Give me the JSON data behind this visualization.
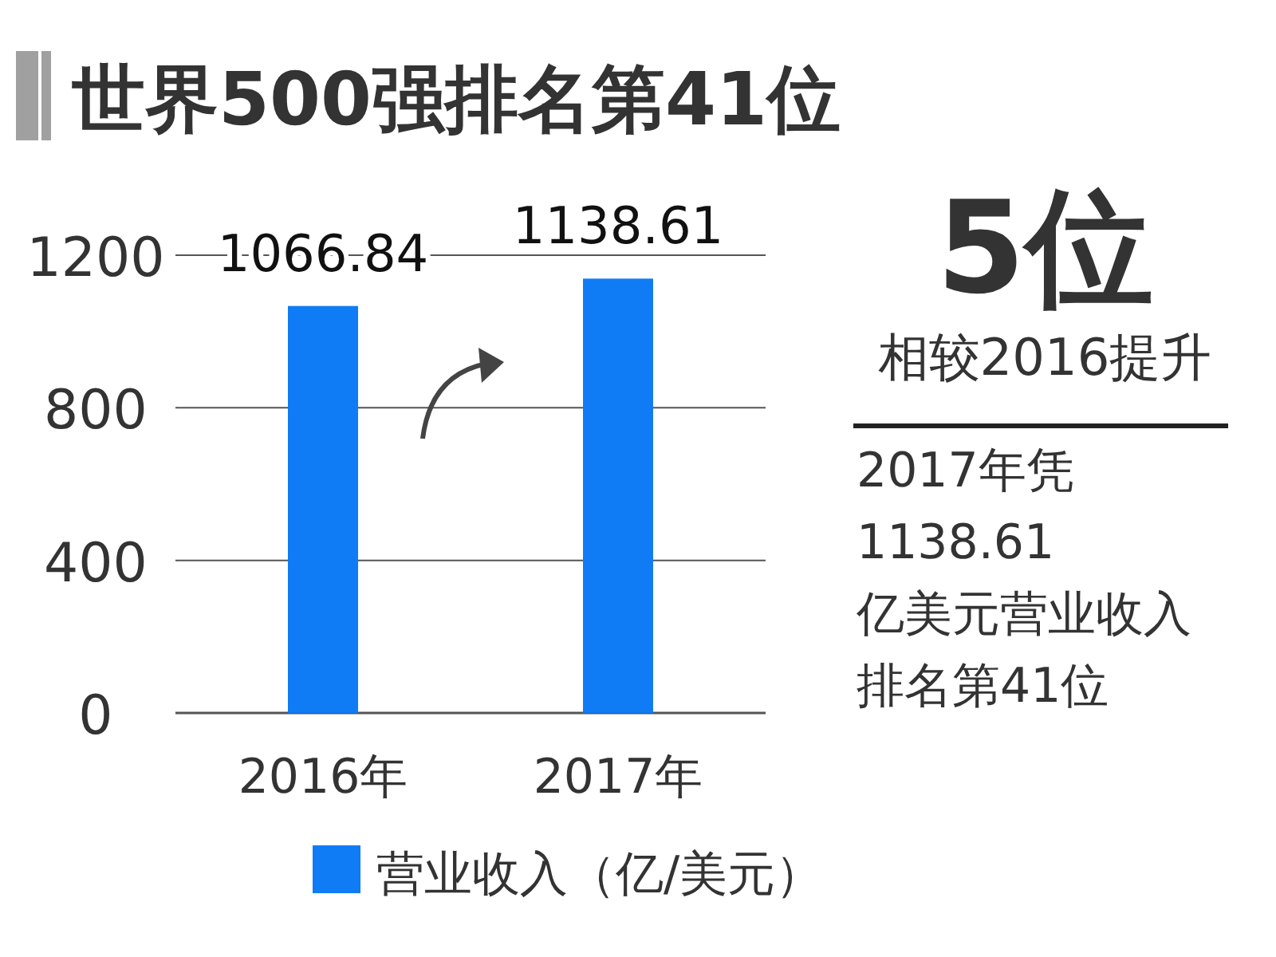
{
  "chart_data": {
    "type": "bar",
    "title": "世界500强排名第41位",
    "categories": [
      "2016年",
      "2017年"
    ],
    "series": [
      {
        "name": "营业收入（亿/美元）",
        "color": "#0f7cf6",
        "values": [
          1066.84,
          1138.61
        ]
      }
    ],
    "ylim": [
      0,
      1200
    ],
    "yticks": [
      0,
      400,
      800,
      1200
    ],
    "grid": "y",
    "legend": "bottom",
    "data_labels": true,
    "annotations": [
      "5位",
      "相较2016提升",
      "2017年凭1138.61亿美元营业收入排名第41位"
    ]
  }
}
